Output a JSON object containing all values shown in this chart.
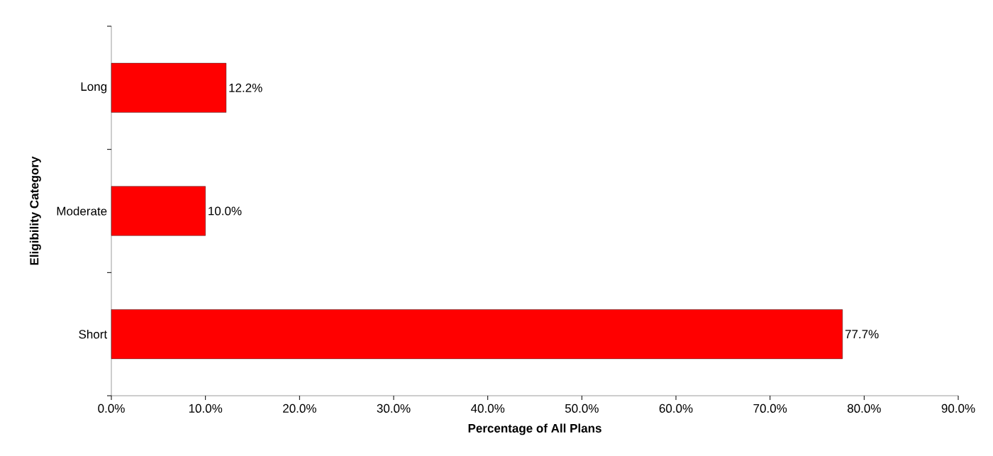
{
  "chart_data": {
    "type": "bar",
    "orientation": "horizontal",
    "xlabel": "Percentage of All Plans",
    "ylabel": "Eligibility Category",
    "categories": [
      "Long",
      "Moderate",
      "Short"
    ],
    "values": [
      12.2,
      10.0,
      77.7
    ],
    "value_labels": [
      "12.2%",
      "10.0%",
      "77.7%"
    ],
    "color": "#ff0000",
    "xlim": [
      0,
      90
    ],
    "xticks": [
      {
        "value": 0,
        "label": "0.0%"
      },
      {
        "value": 10,
        "label": "10.0%"
      },
      {
        "value": 20,
        "label": "20.0%"
      },
      {
        "value": 30,
        "label": "30.0%"
      },
      {
        "value": 40,
        "label": "40.0%"
      },
      {
        "value": 50,
        "label": "50.0%"
      },
      {
        "value": 60,
        "label": "60.0%"
      },
      {
        "value": 70,
        "label": "70.0%"
      },
      {
        "value": 80,
        "label": "80.0%"
      },
      {
        "value": 90,
        "label": "90.0%"
      }
    ],
    "grid": false
  }
}
